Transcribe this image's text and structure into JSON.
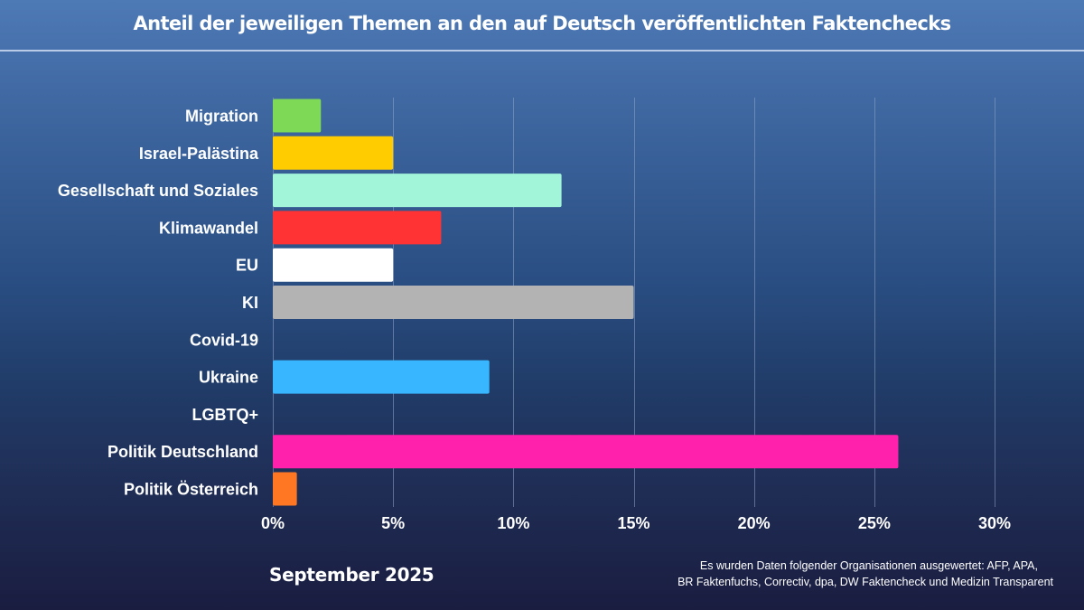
{
  "title": "Anteil der jeweiligen Themen an den auf Deutsch veröffentlichten Faktenchecks",
  "footer": {
    "period": "September 2025",
    "source_line1": "Es wurden Daten folgender Organisationen ausgewertet: AFP, APA,",
    "source_line2": "BR Faktenfuchs, Correctiv, dpa, DW Faktencheck und Medizin Transparent"
  },
  "chart_data": {
    "type": "bar",
    "orientation": "horizontal",
    "title": "Anteil der jeweiligen Themen an den auf Deutsch veröffentlichten Faktenchecks",
    "xlabel": "",
    "ylabel": "",
    "unit": "%",
    "xlim": [
      0,
      30
    ],
    "grid": true,
    "x_ticks": [
      0,
      5,
      10,
      15,
      20,
      25,
      30
    ],
    "x_tick_labels": [
      "0%",
      "5%",
      "10%",
      "15%",
      "20%",
      "25%",
      "30%"
    ],
    "categories": [
      "Migration",
      "Israel-Palästina",
      "Gesellschaft und Soziales",
      "Klimawandel",
      "EU",
      "KI",
      "Covid-19",
      "Ukraine",
      "LGBTQ+",
      "Politik Deutschland",
      "Politik Österreich"
    ],
    "values": [
      2,
      5,
      12,
      7,
      5,
      15,
      0,
      9,
      0,
      26,
      1
    ],
    "colors": [
      "#7ed957",
      "#ffcc00",
      "#a3f5da",
      "#ff3333",
      "#ffffff",
      "#b3b3b3",
      "#b3b3b3",
      "#38b6ff",
      "#ff66c4",
      "#ff21ac",
      "#ff7722"
    ]
  }
}
